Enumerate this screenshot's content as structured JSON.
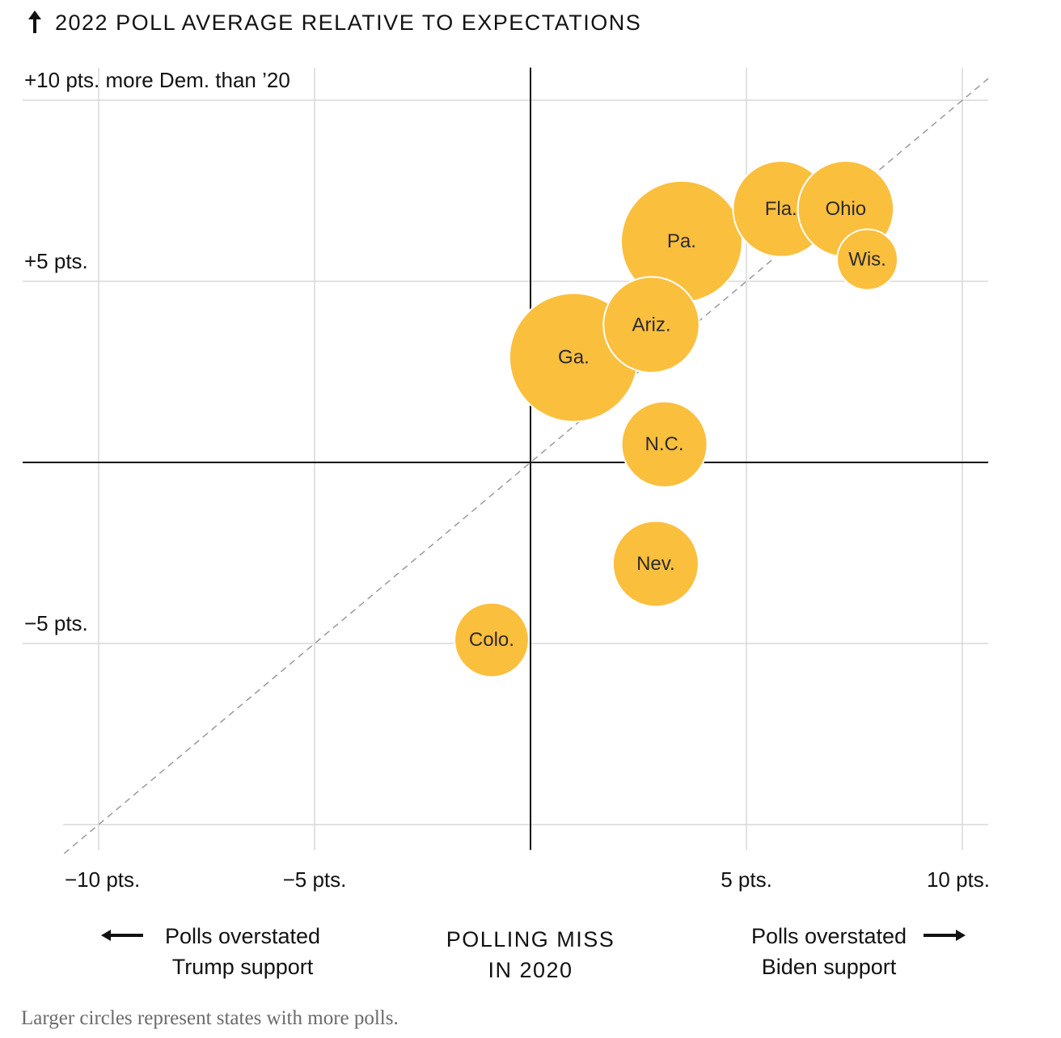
{
  "chart_data": {
    "type": "scatter",
    "title": "2022 POLL AVERAGE RELATIVE TO EXPECTATIONS",
    "xlabel": [
      "POLLING MISS",
      "IN 2020"
    ],
    "xlim": [
      -10.9,
      10.6
    ],
    "ylim": [
      -10.7,
      10.9
    ],
    "x_ticks": [
      {
        "value": -10,
        "label": "−10 pts."
      },
      {
        "value": -5,
        "label": "−5 pts."
      },
      {
        "value": 5,
        "label": "5 pts."
      },
      {
        "value": 10,
        "label": "10 pts."
      }
    ],
    "y_ticks": [
      {
        "value": 10,
        "label": "+10 pts. more Dem. than ’20"
      },
      {
        "value": 5,
        "label": "+5 pts."
      },
      {
        "value": -5,
        "label": "−5 pts."
      }
    ],
    "grid": true,
    "reference_line": "y = x (dashed)",
    "bubble_color": "#fbbf3e",
    "axis_color": "#111111",
    "grid_color": "#d9d9d9",
    "x_annotations": {
      "left": [
        "Polls overstated",
        "Trump support"
      ],
      "right": [
        "Polls overstated",
        "Biden support"
      ]
    },
    "points": [
      {
        "label": "Colo.",
        "x": -0.9,
        "y": -4.9,
        "polls": 3
      },
      {
        "label": "Nev.",
        "x": 2.9,
        "y": -2.8,
        "polls": 4
      },
      {
        "label": "N.C.",
        "x": 3.1,
        "y": 0.5,
        "polls": 4
      },
      {
        "label": "Ariz.",
        "x": 2.8,
        "y": 3.8,
        "polls": 5
      },
      {
        "label": "Ga.",
        "x": 1.0,
        "y": 2.9,
        "polls": 9
      },
      {
        "label": "Pa.",
        "x": 3.5,
        "y": 6.1,
        "polls": 8
      },
      {
        "label": "Fla.",
        "x": 5.8,
        "y": 7.0,
        "polls": 5
      },
      {
        "label": "Ohio",
        "x": 7.3,
        "y": 7.0,
        "polls": 5
      },
      {
        "label": "Wis.",
        "x": 7.8,
        "y": 5.6,
        "polls": 2
      }
    ]
  },
  "note": "Larger circles represent states with more polls."
}
